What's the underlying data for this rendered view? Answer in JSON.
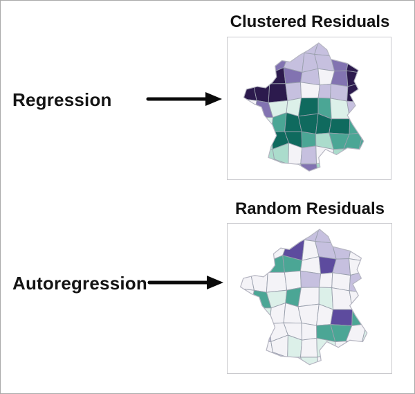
{
  "figure": {
    "description": "Comparison of residual maps of France",
    "background": "#ffffff",
    "border_color": "#a9a9a9"
  },
  "left_labels": [
    {
      "text": "Regression"
    },
    {
      "text": "Autoregression"
    }
  ],
  "arrow": {
    "color": "#0a0a0a"
  },
  "palette": {
    "darkest_purple": "#2c1a4d",
    "dark_purple": "#5d4b9e",
    "medium_purple": "#8273b1",
    "light_purple": "#c6c0df",
    "neutral_white": "#f4f3f7",
    "palest_teal": "#dcf0e9",
    "light_teal": "#abdccc",
    "medium_teal": "#4ba695",
    "dark_teal": "#0f6a5e",
    "department_border": "#9aa0ad",
    "coast_outline": "#b6b6c2"
  },
  "code_legend": {
    "D": "darkest_purple",
    "V": "dark_purple",
    "P": "medium_purple",
    "p": "light_purple",
    ".": "neutral_white",
    "t": "palest_teal",
    "l": "light_teal",
    "g": "medium_teal",
    "G": "dark_teal"
  },
  "maps": [
    {
      "name": "clustered-residuals",
      "title": "Clustered Residuals",
      "pattern": "clustered",
      "grid": [
        "....pp...",
        "..PpppPDD",
        "DDDPp.PDD",
        "DDDp.ppDD",
        ".PttGgtpP",
        ".tgGGGGg.",
        ".lGGglggg",
        ".ll.p.lgg",
        "..l.Pl.l."
      ]
    },
    {
      "name": "random-residuals",
      "title": "Random Residuals",
      "pattern": "random",
      "grid": [
        "....pp...",
        "...V.pp..",
        ".tgg.Vp.p",
        "....p..p.",
        ".gtg.t...",
        ".t....Vgt",
        ".p...gg.t",
        "...t.t.p.",
        "..p.t...."
      ]
    }
  ]
}
